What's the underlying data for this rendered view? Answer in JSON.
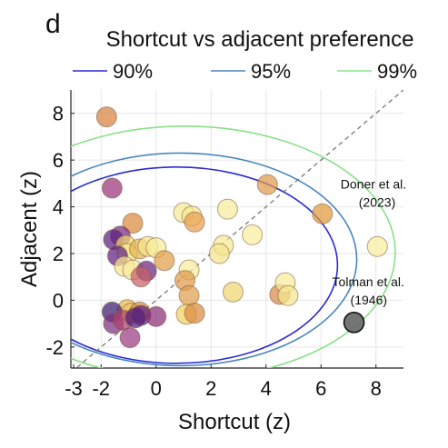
{
  "chart_data": {
    "type": "scatter",
    "panel_label": "d",
    "title": "Shortcut vs adjacent preference",
    "xlabel": "Shortcut (z)",
    "ylabel": "Adjacent (z)",
    "xlim": [
      -3.1,
      9.0
    ],
    "ylim": [
      -2.9,
      9.0
    ],
    "xticks": [
      -3,
      -2,
      0,
      2,
      4,
      6,
      8
    ],
    "yticks": [
      -2,
      0,
      2,
      4,
      6,
      8
    ],
    "grid": true,
    "legend": {
      "placement": "top",
      "entries": [
        {
          "label": "90%",
          "color": "#2a2ad6"
        },
        {
          "label": "95%",
          "color": "#4a86c0"
        },
        {
          "label": "99%",
          "color": "#88e088"
        }
      ]
    },
    "ellipses": [
      {
        "name": "90%",
        "cx": 0.75,
        "cy": 1.5,
        "rx": 5.85,
        "ry": 4.2,
        "color": "#2a2ad6"
      },
      {
        "name": "95%",
        "cx": 0.9,
        "cy": 1.75,
        "rx": 6.4,
        "ry": 4.55,
        "color": "#4a86c0"
      },
      {
        "name": "99%",
        "cx": 1.05,
        "cy": 2.05,
        "rx": 7.65,
        "ry": 5.4,
        "color": "#88e088"
      }
    ],
    "diagonal": {
      "style": "dashed",
      "color": "#777777"
    },
    "points": [
      {
        "x": -1.8,
        "y": 7.85,
        "c": "#d98240"
      },
      {
        "x": -1.6,
        "y": 4.8,
        "c": "#9a3477"
      },
      {
        "x": -0.85,
        "y": 3.3,
        "c": "#d98a40"
      },
      {
        "x": -1.3,
        "y": 2.75,
        "c": "#7a2a82"
      },
      {
        "x": -1.55,
        "y": 2.6,
        "c": "#5a1f7e"
      },
      {
        "x": -1.1,
        "y": 2.35,
        "c": "#f0d86c"
      },
      {
        "x": -1.05,
        "y": 2.0,
        "c": "#f5e690"
      },
      {
        "x": -0.6,
        "y": 2.2,
        "c": "#e8b450"
      },
      {
        "x": -0.3,
        "y": 2.3,
        "c": "#f5e48c"
      },
      {
        "x": 0.0,
        "y": 2.25,
        "c": "#f7ea98"
      },
      {
        "x": -1.4,
        "y": 1.9,
        "c": "#5f2080"
      },
      {
        "x": -1.15,
        "y": 1.45,
        "c": "#f6e690"
      },
      {
        "x": -0.85,
        "y": 1.3,
        "c": "#f8ec9c"
      },
      {
        "x": -0.35,
        "y": 1.25,
        "c": "#6a2481"
      },
      {
        "x": -0.55,
        "y": 1.0,
        "c": "#c8606a"
      },
      {
        "x": 0.3,
        "y": 1.7,
        "c": "#e0a048"
      },
      {
        "x": -1.05,
        "y": -0.4,
        "c": "#e8b450"
      },
      {
        "x": -0.9,
        "y": -0.55,
        "c": "#f0c860"
      },
      {
        "x": -0.6,
        "y": -0.5,
        "c": "#d48a48"
      },
      {
        "x": -1.6,
        "y": -0.5,
        "c": "#3c1a70"
      },
      {
        "x": -1.55,
        "y": -1.0,
        "c": "#7a3080"
      },
      {
        "x": -1.2,
        "y": -0.85,
        "c": "#b04070"
      },
      {
        "x": -0.75,
        "y": -0.75,
        "c": "#4f1e79"
      },
      {
        "x": -0.55,
        "y": -0.65,
        "c": "#5a2080"
      },
      {
        "x": 0.0,
        "y": -0.7,
        "c": "#8a2e78"
      },
      {
        "x": -0.95,
        "y": -1.6,
        "c": "#9a3a82"
      },
      {
        "x": 1.0,
        "y": 3.75,
        "c": "#f7ea98"
      },
      {
        "x": 1.3,
        "y": 3.6,
        "c": "#f5e690"
      },
      {
        "x": 1.4,
        "y": 3.35,
        "c": "#e8a050"
      },
      {
        "x": 2.6,
        "y": 3.9,
        "c": "#f8ec9c"
      },
      {
        "x": 3.5,
        "y": 2.8,
        "c": "#f8ee9e"
      },
      {
        "x": 2.45,
        "y": 2.35,
        "c": "#f6ea96"
      },
      {
        "x": 2.3,
        "y": 2.0,
        "c": "#f5e48c"
      },
      {
        "x": 1.2,
        "y": 1.3,
        "c": "#f8ec9c"
      },
      {
        "x": 1.05,
        "y": 0.85,
        "c": "#e09a4c"
      },
      {
        "x": 1.2,
        "y": 0.2,
        "c": "#e0a04c"
      },
      {
        "x": 1.1,
        "y": -0.6,
        "c": "#f0d060"
      },
      {
        "x": 1.4,
        "y": -0.55,
        "c": "#d98a40"
      },
      {
        "x": 2.8,
        "y": 0.35,
        "c": "#f0d670"
      },
      {
        "x": 4.05,
        "y": 4.95,
        "c": "#e09a4c"
      },
      {
        "x": 4.5,
        "y": 0.25,
        "c": "#d88a48"
      },
      {
        "x": 4.7,
        "y": 0.75,
        "c": "#f8ec9c"
      },
      {
        "x": 4.8,
        "y": 0.2,
        "c": "#f5e690"
      },
      {
        "x": 6.05,
        "y": 3.7,
        "c": "#e09a3c"
      },
      {
        "x": 8.05,
        "y": 2.3,
        "c": "#f8ee9e"
      }
    ],
    "references": [
      {
        "label": "Doner et al.",
        "sub": "(2023)",
        "x": 6.05,
        "y": 3.7,
        "c": "#e09a3c"
      },
      {
        "label": "Tolman et al.",
        "sub": "(1946)",
        "x": 7.2,
        "y": -0.95,
        "c": "#666666"
      }
    ]
  }
}
